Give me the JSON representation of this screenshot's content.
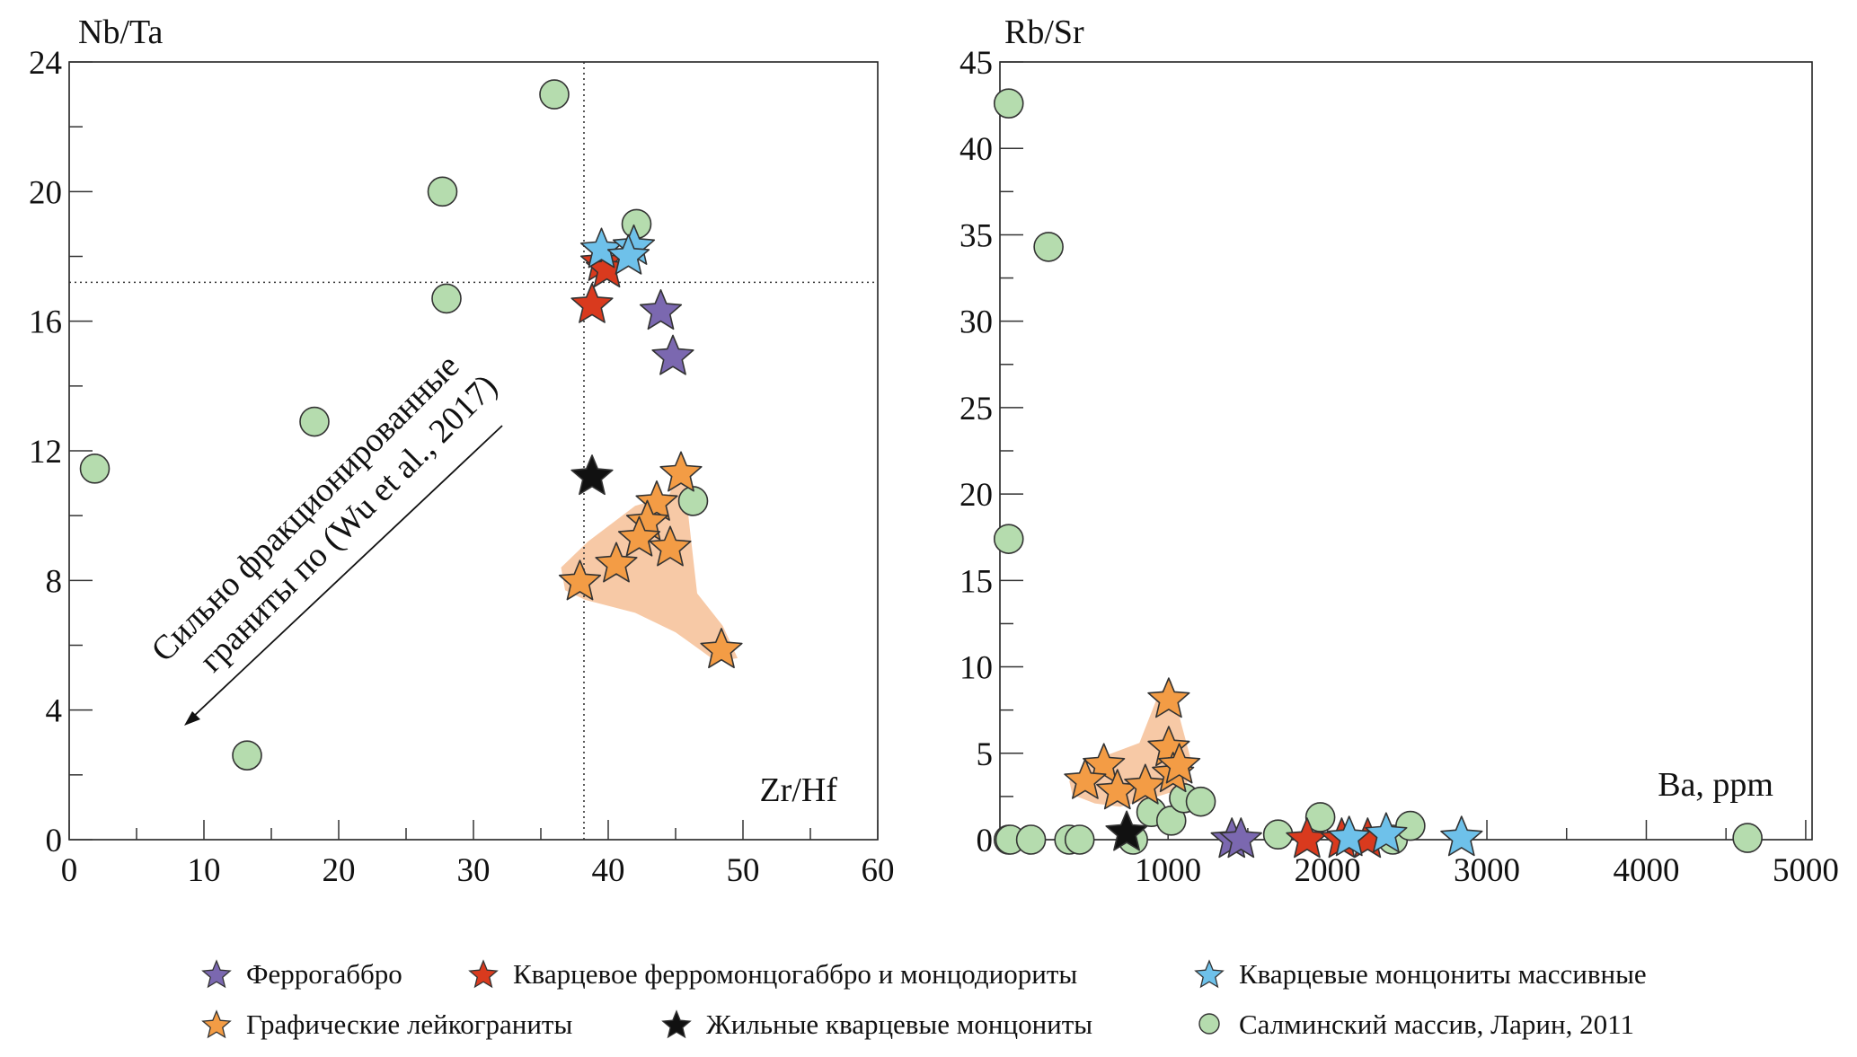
{
  "chart_data": [
    {
      "type": "scatter",
      "xlabel": "Zr/Hf",
      "ylabel": "Nb/Ta",
      "xlim": [
        0,
        60
      ],
      "ylim": [
        0,
        24
      ],
      "xticks": [
        0,
        10,
        20,
        30,
        40,
        50,
        60
      ],
      "yticks": [
        0,
        4,
        8,
        12,
        16,
        20,
        24
      ],
      "grid": false,
      "reference_lines": {
        "x": 38.2,
        "y": 17.2
      },
      "annotation": {
        "line1": "Сильно фракционированные",
        "line2": "граниты по (Wu et al., 2017)"
      },
      "field": {
        "series": "Графические лейкограниты",
        "polygon": [
          [
            36.5,
            8.4
          ],
          [
            38.5,
            9.2
          ],
          [
            42,
            10.3
          ],
          [
            44.5,
            10.6
          ],
          [
            45.5,
            11.8
          ],
          [
            46,
            9.8
          ],
          [
            46.6,
            7.6
          ],
          [
            48.5,
            6.6
          ],
          [
            49.6,
            5.6
          ],
          [
            48,
            5.5
          ],
          [
            45,
            6.4
          ],
          [
            42,
            7.0
          ],
          [
            38.3,
            7.4
          ],
          [
            36.8,
            7.7
          ]
        ]
      },
      "series": [
        {
          "name": "Феррогаббро",
          "marker": "star",
          "color": "#7b68b0",
          "points": [
            [
              43.9,
              16.3
            ],
            [
              44.8,
              14.9
            ]
          ]
        },
        {
          "name": "Кварцевое ферромонцогаббро и монцодиориты",
          "marker": "star",
          "color": "#d93a1e",
          "points": [
            [
              39.5,
              17.8
            ],
            [
              38.8,
              16.5
            ],
            [
              39.9,
              17.6
            ]
          ]
        },
        {
          "name": "Кварцевые монцониты массивные",
          "marker": "star",
          "color": "#6ec1ea",
          "points": [
            [
              39.5,
              18.2
            ],
            [
              41.9,
              18.3
            ],
            [
              41.5,
              18.0
            ]
          ]
        },
        {
          "name": "Графические лейкограниты",
          "marker": "star",
          "color": "#f39c45",
          "points": [
            [
              45.4,
              11.3
            ],
            [
              43.6,
              10.4
            ],
            [
              42.9,
              9.8
            ],
            [
              42.3,
              9.3
            ],
            [
              44.6,
              9.0
            ],
            [
              40.6,
              8.5
            ],
            [
              37.9,
              7.95
            ],
            [
              48.4,
              5.85
            ]
          ]
        },
        {
          "name": "Жильные кварцевые монцониты",
          "marker": "star",
          "color": "#111111",
          "points": [
            [
              38.8,
              11.2
            ]
          ]
        },
        {
          "name": "Салминский массив, Ларин, 2011",
          "marker": "circle",
          "color": "#b5dcae",
          "points": [
            [
              1.9,
              11.45
            ],
            [
              18.2,
              12.9
            ],
            [
              27.7,
              20.0
            ],
            [
              28.0,
              16.7
            ],
            [
              36.0,
              23.0
            ],
            [
              42.1,
              19.0
            ],
            [
              46.3,
              10.45
            ],
            [
              13.2,
              2.6
            ]
          ]
        }
      ]
    },
    {
      "type": "scatter",
      "xlabel": "Ba, ppm",
      "ylabel": "Rb/Sr",
      "xlim": [
        -55,
        5040
      ],
      "ylim": [
        0,
        45
      ],
      "xticks": [
        1000,
        2000,
        3000,
        4000,
        5000
      ],
      "yticks": [
        0,
        5,
        10,
        15,
        20,
        25,
        30,
        35,
        40,
        45
      ],
      "grid": false,
      "field": {
        "series": "Графические лейкограниты",
        "polygon": [
          [
            380,
            3.4
          ],
          [
            560,
            4.7
          ],
          [
            820,
            5.6
          ],
          [
            940,
            8.4
          ],
          [
            1020,
            9.2
          ],
          [
            1080,
            6.8
          ],
          [
            1150,
            4.4
          ],
          [
            1110,
            3.0
          ],
          [
            900,
            2.4
          ],
          [
            700,
            1.9
          ],
          [
            540,
            2.1
          ],
          [
            400,
            2.6
          ]
        ]
      },
      "series": [
        {
          "name": "Феррогаббро",
          "marker": "star",
          "color": "#7b68b0",
          "points": [
            [
              1400,
              0
            ],
            [
              1457,
              0
            ]
          ]
        },
        {
          "name": "Кварцевое ферромонцогаббро и монцодиориты",
          "marker": "star",
          "color": "#d93a1e",
          "points": [
            [
              1872,
              0
            ],
            [
              2089,
              0
            ],
            [
              2252,
              0
            ]
          ]
        },
        {
          "name": "Кварцевые монцониты массивные",
          "marker": "star",
          "color": "#6ec1ea",
          "points": [
            [
              2136,
              0.1
            ],
            [
              2368,
              0.3
            ],
            [
              2841,
              0.1
            ]
          ]
        },
        {
          "name": "Графические лейкограниты",
          "marker": "star",
          "color": "#f39c45",
          "points": [
            [
              1004,
              8.1
            ],
            [
              1004,
              5.3
            ],
            [
              597,
              4.3
            ],
            [
              480,
              3.4
            ],
            [
              682,
              2.8
            ],
            [
              857,
              3.1
            ],
            [
              1031,
              3.8
            ],
            [
              1070,
              4.3
            ]
          ]
        },
        {
          "name": "Жильные кварцевые монцониты",
          "marker": "star",
          "color": "#111111",
          "points": [
            [
              740,
              0.4
            ]
          ]
        },
        {
          "name": "Салминский массив, Ларин, 2011",
          "marker": "circle",
          "color": "#b5dcae",
          "points": [
            [
              0,
              42.6
            ],
            [
              250,
              34.3
            ],
            [
              0,
              17.4
            ],
            [
              0,
              0
            ],
            [
              10,
              0
            ],
            [
              140,
              0
            ],
            [
              380,
              0
            ],
            [
              445,
              0
            ],
            [
              780,
              0
            ],
            [
              895,
              1.6
            ],
            [
              1020,
              1.1
            ],
            [
              1100,
              2.4
            ],
            [
              1205,
              2.2
            ],
            [
              1690,
              0.3
            ],
            [
              1955,
              1.3
            ],
            [
              2410,
              0
            ],
            [
              2520,
              0.8
            ],
            [
              4635,
              0.1
            ]
          ]
        }
      ]
    }
  ],
  "legend": {
    "items": [
      {
        "label": "Феррогаббро",
        "marker": "star",
        "color": "#7b68b0"
      },
      {
        "label": "Кварцевое ферромонцогаббро и монцодиориты",
        "marker": "star",
        "color": "#d93a1e"
      },
      {
        "label": "Кварцевые монцониты массивные",
        "marker": "star",
        "color": "#6ec1ea"
      },
      {
        "label": "Графические лейкограниты",
        "marker": "star",
        "color": "#f39c45"
      },
      {
        "label": "Жильные кварцевые монцониты",
        "marker": "star",
        "color": "#111111"
      },
      {
        "label": "Салминский массив, Ларин, 2011",
        "marker": "circle",
        "color": "#b5dcae"
      }
    ],
    "field_color": "#f7c9a6"
  }
}
